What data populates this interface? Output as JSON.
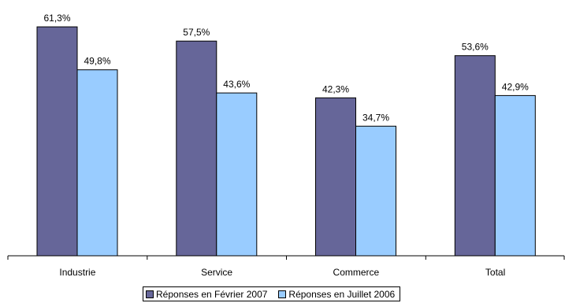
{
  "chart_data": {
    "type": "bar",
    "categories": [
      "Industrie",
      "Service",
      "Commerce",
      "Total"
    ],
    "series": [
      {
        "name": "Réponses en Février 2007",
        "values": [
          61.3,
          57.5,
          42.3,
          53.6
        ],
        "labels": [
          "61,3%",
          "57,5%",
          "42,3%",
          "53,6%"
        ],
        "color": "#666699"
      },
      {
        "name": "Réponses en Juillet 2006",
        "values": [
          49.8,
          43.6,
          34.7,
          42.9
        ],
        "labels": [
          "49,8%",
          "43,6%",
          "34,7%",
          "42,9%"
        ],
        "color": "#99ccff"
      }
    ],
    "xlabel": "",
    "ylabel": "",
    "ylim": [
      0,
      65
    ],
    "grid": false,
    "legend_position": "bottom-center"
  }
}
